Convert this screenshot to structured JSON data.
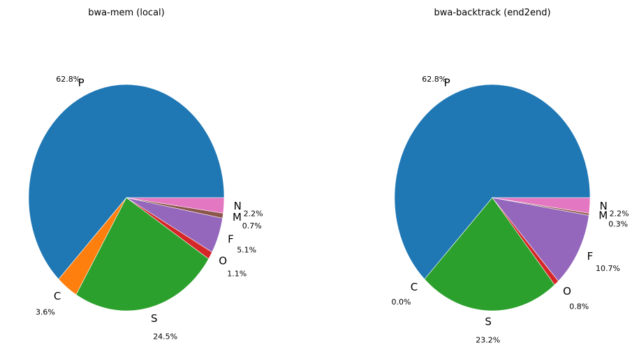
{
  "chart_data": [
    {
      "type": "pie",
      "title": "bwa-mem (local)",
      "slices": [
        {
          "label": "P",
          "value": 62.8,
          "pct_text": "62.8%",
          "color": "#1f77b4"
        },
        {
          "label": "C",
          "value": 3.6,
          "pct_text": "3.6%",
          "color": "#ff7f0e"
        },
        {
          "label": "S",
          "value": 24.5,
          "pct_text": "24.5%",
          "color": "#2ca02c"
        },
        {
          "label": "O",
          "value": 1.1,
          "pct_text": "1.1%",
          "color": "#d62728"
        },
        {
          "label": "F",
          "value": 5.1,
          "pct_text": "5.1%",
          "color": "#9467bd"
        },
        {
          "label": "M",
          "value": 0.7,
          "pct_text": "0.7%",
          "color": "#8c564b"
        },
        {
          "label": "N",
          "value": 2.2,
          "pct_text": "2.2%",
          "color": "#e377c2"
        }
      ]
    },
    {
      "type": "pie",
      "title": "bwa-backtrack (end2end)",
      "slices": [
        {
          "label": "P",
          "value": 62.8,
          "pct_text": "62.8%",
          "color": "#1f77b4"
        },
        {
          "label": "C",
          "value": 0.0,
          "pct_text": "0.0%",
          "color": "#ff7f0e"
        },
        {
          "label": "S",
          "value": 23.2,
          "pct_text": "23.2%",
          "color": "#2ca02c"
        },
        {
          "label": "O",
          "value": 0.8,
          "pct_text": "0.8%",
          "color": "#d62728"
        },
        {
          "label": "F",
          "value": 10.7,
          "pct_text": "10.7%",
          "color": "#9467bd"
        },
        {
          "label": "M",
          "value": 0.3,
          "pct_text": "0.3%",
          "color": "#8c564b"
        },
        {
          "label": "N",
          "value": 2.2,
          "pct_text": "2.2%",
          "color": "#e377c2"
        }
      ]
    }
  ]
}
